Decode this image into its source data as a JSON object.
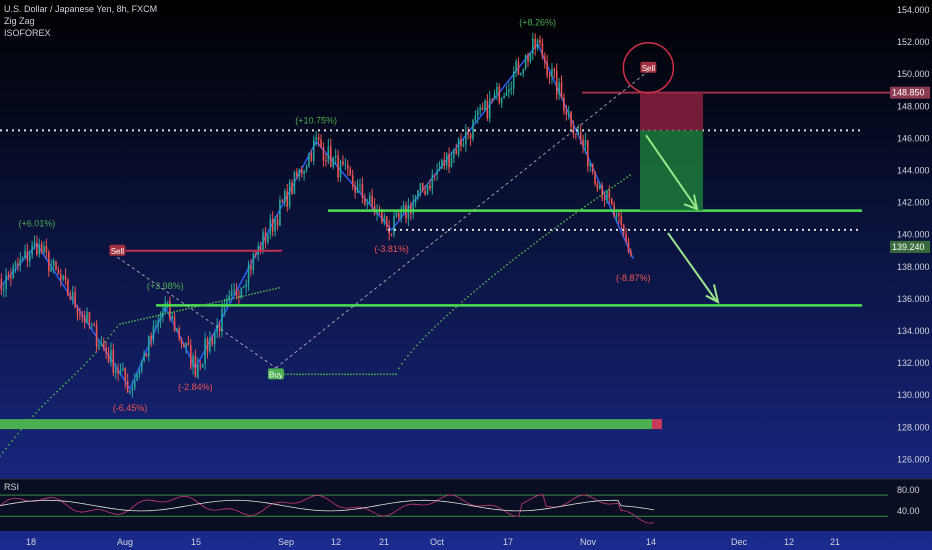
{
  "legend": {
    "symbol": "U.S. Dollar / Japanese Yen, 8h, FXCM",
    "indicator1": "Zig Zag",
    "indicator2": "ISOFOREX"
  },
  "rsi_label": "RSI",
  "colors": {
    "up_candle": "#26a69a",
    "down_candle": "#ef5350",
    "zigzag": "#2962ff",
    "support_line": "#4cdf50",
    "resistance_line": "#a0304a",
    "trend_dots": "#4caf50",
    "sell_label": "#a3303f",
    "buy_label": "#4caf50",
    "price_tag": "#3a6b3d",
    "ob_tag": "#8b3a50"
  },
  "chart_data": {
    "type": "candlestick",
    "title": "U.S. Dollar / Japanese Yen, 8h, FXCM",
    "y_axis": {
      "ticks": [
        "154.000",
        "152.000",
        "150.000",
        "148.000",
        "146.000",
        "144.000",
        "142.000",
        "140.000",
        "138.000",
        "136.000",
        "134.000",
        "132.000",
        "130.000",
        "128.000",
        "126.000"
      ],
      "range": [
        125.5,
        154.5
      ]
    },
    "x_axis": {
      "ticks": [
        "18",
        "Aug",
        "15",
        "Sep",
        "12",
        "21",
        "Oct",
        "17",
        "Nov",
        "14",
        "Dec",
        "12",
        "21"
      ]
    },
    "zigzag": [
      {
        "date": "Jul 06",
        "price": 136.5
      },
      {
        "date": "Jul 14",
        "price": 139.4,
        "label": "(+6.01%)"
      },
      {
        "date": "Aug 02",
        "price": 130.4,
        "label": "(-6.45%)"
      },
      {
        "date": "Aug 09",
        "price": 135.5,
        "label": "(+3.98%)"
      },
      {
        "date": "Aug 15",
        "price": 131.7,
        "label": "(-2.84%)"
      },
      {
        "date": "Sep 07",
        "price": 145.8,
        "label": "(+10.75%)"
      },
      {
        "date": "Sep 22",
        "price": 140.3,
        "label": "(-3.81%)"
      },
      {
        "date": "Oct 21",
        "price": 151.9,
        "label": "(+8.26%)"
      },
      {
        "date": "Nov 10",
        "price": 138.5,
        "label": "(-8.87%)"
      }
    ],
    "levels": {
      "current_price": "139.240",
      "resistance_tag": "148.850",
      "dotted_upper": 146.5,
      "dotted_lower": 140.3,
      "support_upper": 141.5,
      "support_lower": 135.6,
      "bottom_band": 128.2
    },
    "signals": [
      {
        "text": "Sell",
        "date": "Jul 30",
        "price": 139.0
      },
      {
        "text": "Buy",
        "date": "Aug 31",
        "price": 131.3
      },
      {
        "text": "Sell",
        "date": "Nov 13",
        "price": 150.4
      }
    ],
    "rsi": {
      "ticks": [
        "80.00",
        "40.00"
      ],
      "upper": 70,
      "lower": 30
    }
  }
}
